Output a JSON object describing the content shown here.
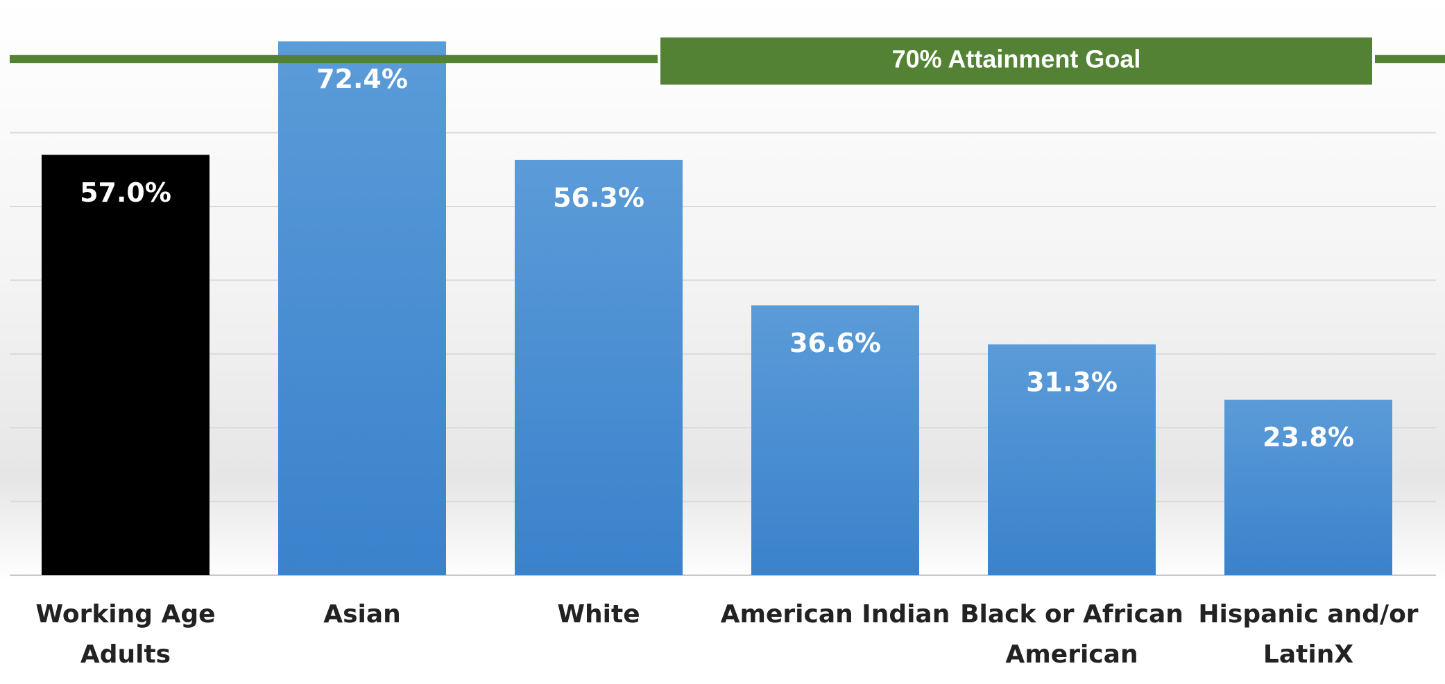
{
  "chart_data": {
    "type": "bar",
    "categories": [
      "Working Age Adults",
      "Asian",
      "White",
      "American Indian",
      "Black or African American",
      "Hispanic and/or LatinX"
    ],
    "values": [
      57.0,
      72.4,
      56.3,
      36.6,
      31.3,
      23.8
    ],
    "value_labels": [
      "57.0%",
      "72.4%",
      "56.3%",
      "36.6%",
      "31.3%",
      "23.8%"
    ],
    "colors": [
      "#000000",
      "#4a90d9",
      "#4a90d9",
      "#4a90d9",
      "#4a90d9",
      "#4a90d9"
    ],
    "ylim": [
      0,
      78
    ],
    "yticks": [
      0,
      10,
      20,
      30,
      40,
      50,
      60
    ],
    "grid": true,
    "goal": {
      "value": 70,
      "label": "70% Attainment Goal",
      "color": "#548235"
    }
  }
}
